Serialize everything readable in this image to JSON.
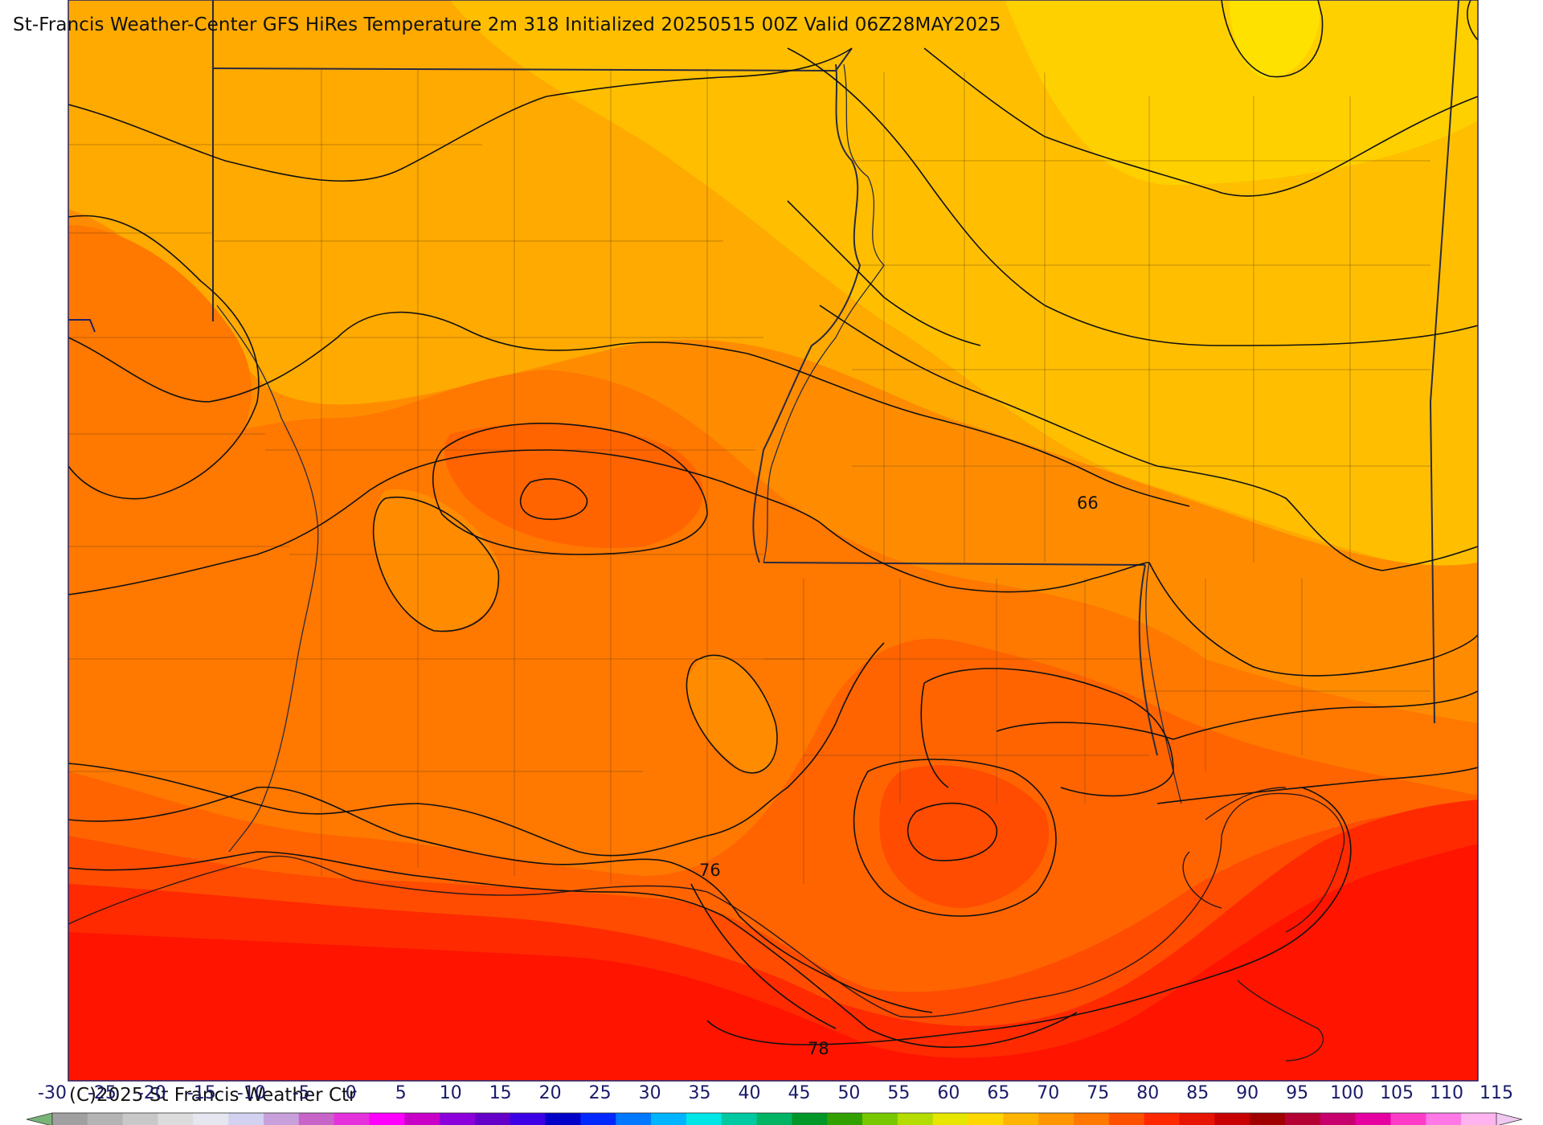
{
  "title": "St-Francis Weather-Center GFS HiRes Temperature 2m  318 Initialized 20250515 00Z Valid 06Z28MAY2025",
  "copyright": "(C)2025 St Francis Weather Ctr",
  "contour_labels": [
    "66",
    "76",
    "78"
  ],
  "colorbar": {
    "ticks": [
      "-30",
      "-25",
      "-20",
      "-15",
      "-10",
      "-5",
      "0",
      "5",
      "10",
      "15",
      "20",
      "25",
      "30",
      "35",
      "40",
      "45",
      "50",
      "55",
      "60",
      "65",
      "70",
      "75",
      "80",
      "85",
      "90",
      "95",
      "100",
      "105",
      "110",
      "115"
    ],
    "colors": [
      "#a0a0a0",
      "#b4b4b4",
      "#c8c8c8",
      "#dcdcdc",
      "#e6e6f0",
      "#d2d2f0",
      "#c8a0dc",
      "#c864c8",
      "#e632dc",
      "#ff00ff",
      "#c800c8",
      "#8c00dc",
      "#6400c8",
      "#3c00e6",
      "#0000c8",
      "#0028ff",
      "#0078ff",
      "#00b4ff",
      "#00e6e6",
      "#00c8a0",
      "#00b464",
      "#009628",
      "#32a000",
      "#78c800",
      "#b4dc00",
      "#e6e600",
      "#ffd700",
      "#ffb400",
      "#ff9600",
      "#ff7800",
      "#ff5000",
      "#ff2800",
      "#e61400",
      "#c80000",
      "#a00000",
      "#b40032",
      "#c8006e",
      "#e600a0",
      "#ff3cc8",
      "#ff78e6",
      "#ffb4f0"
    ],
    "colors_meaning": "0F-step fill palette from -30 to 115 F"
  },
  "map": {
    "fill_colors": {
      "yellow_max": "#ffe100",
      "yellow": "#ffd000",
      "amber": "#ffbf00",
      "orange_light": "#ffaa00",
      "orange": "#ff8c00",
      "orange_dark": "#ff7800",
      "orange_red": "#ff6400",
      "red_orange": "#ff4c00",
      "red": "#ff2a00",
      "deep_red": "#ff1400"
    },
    "border_color": "#222266"
  }
}
